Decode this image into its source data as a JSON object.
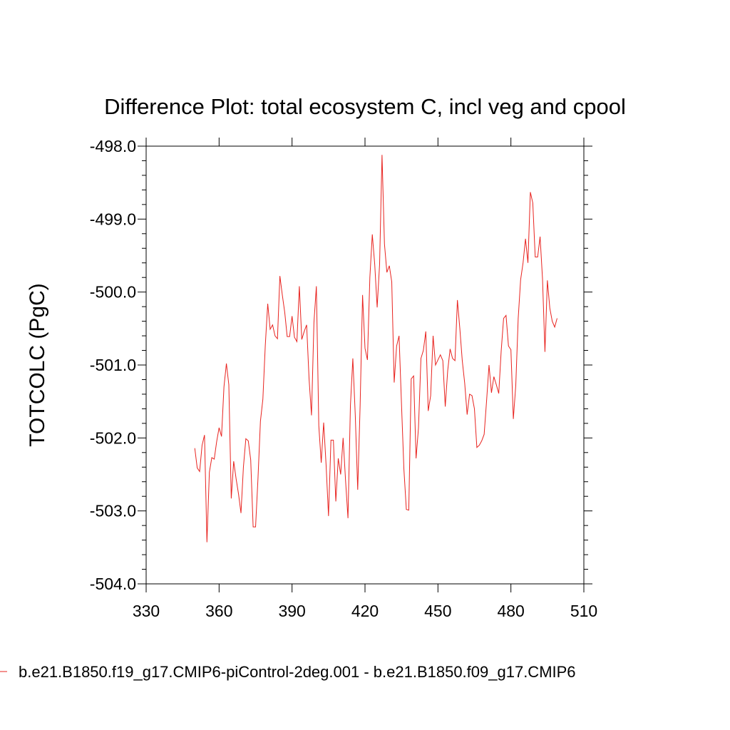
{
  "chart_data": {
    "type": "line",
    "title": "Difference Plot: total ecosystem C, incl veg and cpool",
    "xlabel": "",
    "ylabel": "TOTCOLC  (PgC)",
    "xlim": [
      330,
      510
    ],
    "ylim": [
      -504.0,
      -498.0
    ],
    "x_ticks": [
      "330",
      "360",
      "390",
      "420",
      "450",
      "480",
      "510"
    ],
    "y_ticks": [
      "-498.0",
      "-499.0",
      "-500.0",
      "-501.0",
      "-502.0",
      "-503.0",
      "-504.0"
    ],
    "grid": false,
    "legend": "bottom",
    "series_color": "#e8231f",
    "series": [
      {
        "name": "b.e21.B1850.f19_g17.CMIP6-piControl-2deg.001 - b.e21.B1850.f09_g17.CMIP6",
        "x": [
          350,
          351,
          352,
          353,
          354,
          355,
          356,
          357,
          358,
          359,
          360,
          361,
          362,
          363,
          364,
          365,
          366,
          367,
          368,
          369,
          370,
          371,
          372,
          373,
          374,
          375,
          376,
          377,
          378,
          379,
          380,
          381,
          382,
          383,
          384,
          385,
          386,
          387,
          388,
          389,
          390,
          391,
          392,
          393,
          394,
          395,
          396,
          397,
          398,
          399,
          400,
          401,
          402,
          403,
          404,
          405,
          406,
          407,
          408,
          409,
          410,
          411,
          412,
          413,
          414,
          415,
          416,
          417,
          418,
          419,
          420,
          421,
          422,
          423,
          424,
          425,
          426,
          427,
          428,
          429,
          430,
          431,
          432,
          433,
          434,
          435,
          436,
          437,
          438,
          439,
          440,
          441,
          442,
          443,
          444,
          445,
          446,
          447,
          448,
          449,
          450,
          451,
          452,
          453,
          454,
          455,
          456,
          457,
          458,
          459,
          460,
          461,
          462,
          463,
          464,
          465,
          466,
          467,
          468,
          469,
          470,
          471,
          472,
          473,
          474,
          475,
          476,
          477,
          478,
          479,
          480,
          481,
          482,
          483,
          484,
          485,
          486,
          487,
          488,
          489,
          490,
          491,
          492,
          493,
          494,
          495,
          496,
          497,
          498,
          499
        ],
        "values": [
          -502.14,
          -502.41,
          -502.46,
          -502.1,
          -501.96,
          -503.43,
          -502.47,
          -502.27,
          -502.29,
          -502.05,
          -501.86,
          -501.98,
          -501.3,
          -500.98,
          -501.27,
          -502.83,
          -502.32,
          -502.56,
          -502.77,
          -503.03,
          -502.4,
          -502.01,
          -502.04,
          -502.3,
          -503.22,
          -503.22,
          -502.55,
          -501.77,
          -501.47,
          -500.73,
          -500.16,
          -500.51,
          -500.45,
          -500.6,
          -500.64,
          -499.78,
          -500.04,
          -500.28,
          -500.61,
          -500.61,
          -500.33,
          -500.62,
          -500.68,
          -499.92,
          -500.65,
          -500.54,
          -500.45,
          -501.19,
          -501.69,
          -500.42,
          -499.92,
          -501.83,
          -502.34,
          -501.79,
          -502.37,
          -503.07,
          -502.03,
          -502.03,
          -502.87,
          -502.28,
          -502.5,
          -502.0,
          -502.58,
          -503.1,
          -501.56,
          -500.91,
          -501.69,
          -502.71,
          -501.55,
          -500.04,
          -500.77,
          -500.93,
          -499.8,
          -499.21,
          -499.62,
          -500.21,
          -499.62,
          -498.12,
          -499.34,
          -499.73,
          -499.64,
          -499.86,
          -501.24,
          -500.74,
          -500.6,
          -501.53,
          -502.43,
          -502.98,
          -502.99,
          -501.19,
          -501.15,
          -502.28,
          -501.86,
          -500.91,
          -500.8,
          -500.54,
          -501.63,
          -501.42,
          -500.6,
          -501.0,
          -500.93,
          -500.86,
          -500.94,
          -501.57,
          -501.08,
          -500.78,
          -500.91,
          -500.94,
          -500.11,
          -500.5,
          -500.94,
          -501.25,
          -501.68,
          -501.4,
          -501.42,
          -501.6,
          -502.13,
          -502.1,
          -502.04,
          -501.95,
          -501.49,
          -501.0,
          -501.38,
          -501.16,
          -501.27,
          -501.39,
          -500.81,
          -500.36,
          -500.32,
          -500.74,
          -500.79,
          -501.74,
          -501.28,
          -500.36,
          -499.83,
          -499.6,
          -499.27,
          -499.6,
          -498.63,
          -498.78,
          -499.52,
          -499.52,
          -499.24,
          -499.82,
          -500.82,
          -499.84,
          -500.22,
          -500.4,
          -500.48,
          -500.36
        ]
      }
    ]
  }
}
